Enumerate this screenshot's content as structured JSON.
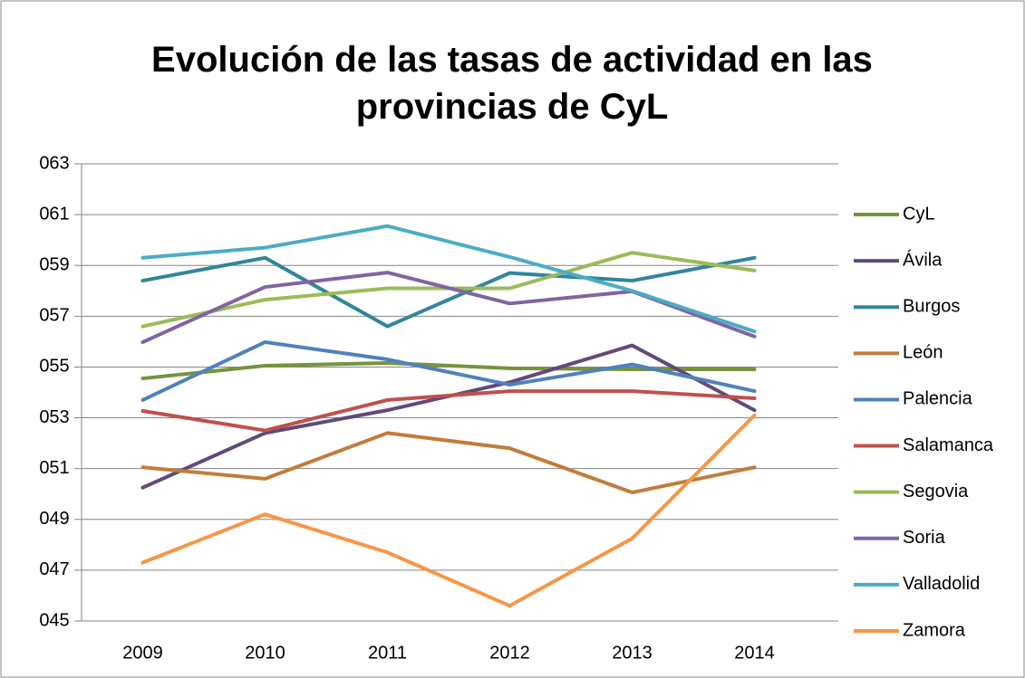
{
  "chart_data": {
    "type": "line",
    "title": "Evolución de las tasas de actividad en las provincias de CyL",
    "categories": [
      "2009",
      "2010",
      "2011",
      "2012",
      "2013",
      "2014"
    ],
    "ylim": [
      45,
      63
    ],
    "yticks": [
      {
        "value": 45,
        "label": "045"
      },
      {
        "value": 47,
        "label": "047"
      },
      {
        "value": 49,
        "label": "049"
      },
      {
        "value": 51,
        "label": "051"
      },
      {
        "value": 53,
        "label": "053"
      },
      {
        "value": 55,
        "label": "055"
      },
      {
        "value": 57,
        "label": "057"
      },
      {
        "value": 59,
        "label": "059"
      },
      {
        "value": 61,
        "label": "061"
      },
      {
        "value": 63,
        "label": "063"
      }
    ],
    "grid": true,
    "legend": "right",
    "series": [
      {
        "name": "CyL",
        "color": "#77933c",
        "values": [
          54.55,
          55.05,
          55.16,
          54.95,
          54.91,
          54.91
        ]
      },
      {
        "name": "Ávila",
        "color": "#604a7b",
        "values": [
          50.25,
          52.4,
          53.3,
          54.4,
          55.85,
          53.3
        ]
      },
      {
        "name": "Burgos",
        "color": "#31859c",
        "values": [
          58.4,
          59.3,
          56.6,
          58.7,
          58.4,
          59.3
        ]
      },
      {
        "name": "León",
        "color": "#c27c3a",
        "values": [
          51.05,
          50.6,
          52.4,
          51.8,
          50.06,
          51.05
        ]
      },
      {
        "name": "Palencia",
        "color": "#4f81bd",
        "values": [
          53.7,
          55.98,
          55.3,
          54.3,
          55.1,
          54.05
        ]
      },
      {
        "name": "Salamanca",
        "color": "#c0504d",
        "values": [
          53.27,
          52.5,
          53.7,
          54.05,
          54.05,
          53.77
        ]
      },
      {
        "name": "Segovia",
        "color": "#9bbb59",
        "values": [
          56.6,
          57.65,
          58.1,
          58.1,
          59.5,
          58.8
        ]
      },
      {
        "name": "Soria",
        "color": "#8064a2",
        "values": [
          55.98,
          58.15,
          58.72,
          57.5,
          57.98,
          56.2
        ]
      },
      {
        "name": "Valladolid",
        "color": "#4bacc6",
        "values": [
          59.3,
          59.7,
          60.55,
          59.33,
          58.0,
          56.4
        ]
      },
      {
        "name": "Zamora",
        "color": "#f79646",
        "values": [
          47.3,
          49.2,
          47.7,
          45.6,
          48.25,
          53.1
        ]
      }
    ]
  }
}
